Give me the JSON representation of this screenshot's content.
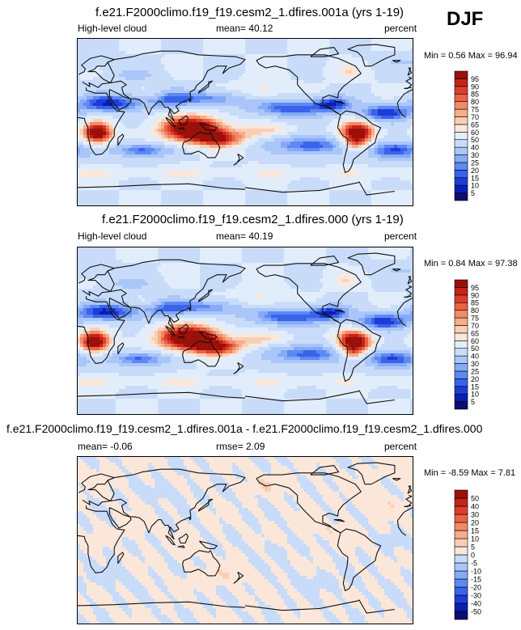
{
  "season": "DJF",
  "colors": {
    "test_ctrl_levels": [
      "#0c0c73",
      "#0a1eb4",
      "#1c3cd8",
      "#3a63ea",
      "#5e88f3",
      "#86aaf7",
      "#aac6f9",
      "#c8dcfa",
      "#e2edfb",
      "#fbe7da",
      "#f9cfb4",
      "#f6ad8a",
      "#f28a66",
      "#ea6344",
      "#dd3e2c",
      "#c52318",
      "#9b1008"
    ],
    "diff_levels": [
      "#0c0c73",
      "#0a1eb4",
      "#1c3cd8",
      "#3a63ea",
      "#5e88f3",
      "#86aaf7",
      "#aac6f9",
      "#c8dcfa",
      "#e2edfb",
      "#fbe7da",
      "#f9cfb4",
      "#f6ad8a",
      "#f28a66",
      "#ea6344",
      "#dd3e2c",
      "#c52318",
      "#9b1008"
    ],
    "land_outline": "#111111"
  },
  "panels": [
    {
      "title": "f.e21.F2000climo.f19_f19.cesm2_1.dfires.001a (yrs 1-19)",
      "left_label": "High-level cloud",
      "center_label": "mean=  40.12",
      "right_label": "percent",
      "minmax": "Min =   0.56 Max =  96.94",
      "colorbar_labels": [
        "5",
        "10",
        "15",
        "20",
        "25",
        "30",
        "40",
        "50",
        "60",
        "65",
        "70",
        "75",
        "80",
        "85",
        "90",
        "95"
      ],
      "type": "field"
    },
    {
      "title": "f.e21.F2000climo.f19_f19.cesm2_1.dfires.000 (yrs 1-19)",
      "left_label": "High-level cloud",
      "center_label": "mean=  40.19",
      "right_label": "percent",
      "minmax": "Min =   0.84 Max =  97.38",
      "colorbar_labels": [
        "5",
        "10",
        "15",
        "20",
        "25",
        "30",
        "40",
        "50",
        "60",
        "65",
        "70",
        "75",
        "80",
        "85",
        "90",
        "95"
      ],
      "type": "field"
    },
    {
      "title": "f.e21.F2000climo.f19_f19.cesm2_1.dfires.001a - f.e21.F2000climo.f19_f19.cesm2_1.dfires.000",
      "left_label": "mean=  -0.06",
      "center_label": "rmse=   2.09",
      "right_label": "percent",
      "minmax": "Min =  -8.59 Max =   7.81",
      "colorbar_labels": [
        "-50",
        "-40",
        "-30",
        "-20",
        "-15",
        "-10",
        "-5",
        "0",
        "5",
        "10",
        "15",
        "20",
        "30",
        "40",
        "50"
      ],
      "type": "diff"
    }
  ],
  "chart_data": [
    {
      "type": "heatmap",
      "title": "f.e21.F2000climo.f19_f19.cesm2_1.dfires.001a (yrs 1-19)",
      "variable": "High-level cloud",
      "units": "percent",
      "mean": 40.12,
      "min": 0.56,
      "max": 96.94,
      "levels": [
        5,
        10,
        15,
        20,
        25,
        30,
        40,
        50,
        60,
        65,
        70,
        75,
        80,
        85,
        90,
        95
      ]
    },
    {
      "type": "heatmap",
      "title": "f.e21.F2000climo.f19_f19.cesm2_1.dfires.000 (yrs 1-19)",
      "variable": "High-level cloud",
      "units": "percent",
      "mean": 40.19,
      "min": 0.84,
      "max": 97.38,
      "levels": [
        5,
        10,
        15,
        20,
        25,
        30,
        40,
        50,
        60,
        65,
        70,
        75,
        80,
        85,
        90,
        95
      ]
    },
    {
      "type": "heatmap",
      "title": "f.e21.F2000climo.f19_f19.cesm2_1.dfires.001a - f.e21.F2000climo.f19_f19.cesm2_1.dfires.000",
      "units": "percent",
      "mean": -0.06,
      "rmse": 2.09,
      "min": -8.59,
      "max": 7.81,
      "levels": [
        -50,
        -40,
        -30,
        -20,
        -15,
        -10,
        -5,
        0,
        5,
        10,
        15,
        20,
        30,
        40,
        50
      ]
    }
  ]
}
